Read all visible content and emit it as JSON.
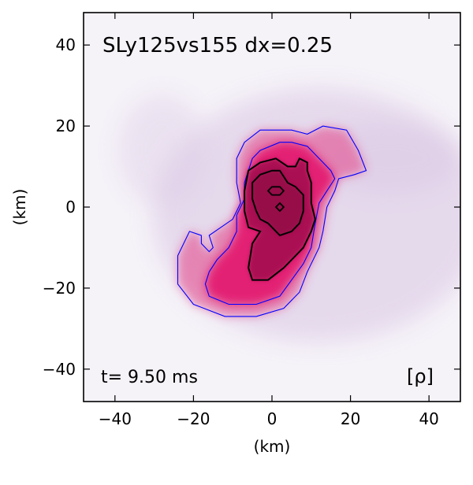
{
  "chart_data": {
    "type": "heatmap",
    "title": "SLy125vs155 dx=0.25",
    "time_label": "t= 9.50 ms",
    "field_label": "[ρ]",
    "xlabel": "(km)",
    "ylabel": "(km)",
    "xlim": [
      -48,
      48
    ],
    "ylim": [
      -48,
      48
    ],
    "xticks": [
      -40,
      -20,
      0,
      20,
      40
    ],
    "yticks": [
      -40,
      -20,
      0,
      20,
      40
    ],
    "xtick_labels": [
      "−40",
      "−20",
      "0",
      "20",
      "40"
    ],
    "ytick_labels": [
      "−40",
      "−20",
      "0",
      "20",
      "40"
    ],
    "grid": false,
    "colors": {
      "background": "#f5f2f8",
      "halo": "#d9c5e3",
      "mid": "#e33f86",
      "core": "#e3005f",
      "inner": "#a0104e",
      "outer_contour": "#0000ff",
      "inner_contour": "#000000"
    },
    "contours": {
      "outer_blue_1": [
        [
          -24,
          -12
        ],
        [
          -21,
          -6
        ],
        [
          -18,
          -7
        ],
        [
          -18,
          -9
        ],
        [
          -16,
          -11
        ],
        [
          -15,
          -10
        ],
        [
          -16,
          -7
        ],
        [
          -13,
          -5
        ],
        [
          -10,
          -3
        ],
        [
          -8,
          1
        ],
        [
          -9,
          6
        ],
        [
          -9,
          12
        ],
        [
          -7,
          16
        ],
        [
          -3,
          19
        ],
        [
          5,
          19
        ],
        [
          9,
          18
        ],
        [
          13,
          20
        ],
        [
          19,
          19
        ],
        [
          22,
          14
        ],
        [
          24,
          9
        ],
        [
          21,
          8
        ],
        [
          17,
          7
        ],
        [
          16,
          4
        ],
        [
          14,
          0
        ],
        [
          13,
          -6
        ],
        [
          12,
          -10
        ],
        [
          9,
          -16
        ],
        [
          7,
          -21
        ],
        [
          3,
          -25
        ],
        [
          -4,
          -27
        ],
        [
          -12,
          -27
        ],
        [
          -20,
          -24
        ],
        [
          -24,
          -19
        ],
        [
          -24,
          -12
        ]
      ],
      "outer_blue_2": [
        [
          -16,
          -16
        ],
        [
          -14,
          -13
        ],
        [
          -11,
          -10
        ],
        [
          -9,
          -6
        ],
        [
          -9,
          -2
        ],
        [
          -7,
          2
        ],
        [
          -7,
          6
        ],
        [
          -5,
          12
        ],
        [
          -3,
          14
        ],
        [
          2,
          16
        ],
        [
          5,
          16
        ],
        [
          9,
          15
        ],
        [
          12,
          12
        ],
        [
          15,
          9
        ],
        [
          16,
          7
        ],
        [
          14,
          4
        ],
        [
          12,
          1
        ],
        [
          11,
          -4
        ],
        [
          10,
          -10
        ],
        [
          8,
          -14
        ],
        [
          5,
          -18
        ],
        [
          2,
          -22
        ],
        [
          -4,
          -24
        ],
        [
          -11,
          -24
        ],
        [
          -16,
          -22
        ],
        [
          -17,
          -19
        ],
        [
          -16,
          -16
        ]
      ],
      "black_1": [
        [
          -6,
          -5
        ],
        [
          -7,
          -1
        ],
        [
          -7,
          4
        ],
        [
          -6,
          9
        ],
        [
          -3,
          11
        ],
        [
          1,
          12
        ],
        [
          4,
          10
        ],
        [
          6,
          10
        ],
        [
          7,
          12
        ],
        [
          9,
          11
        ],
        [
          9,
          9
        ],
        [
          10,
          6
        ],
        [
          10,
          1
        ],
        [
          11,
          -3
        ],
        [
          10,
          -6
        ],
        [
          8,
          -10
        ],
        [
          5,
          -13
        ],
        [
          3,
          -15
        ],
        [
          -1,
          -18
        ],
        [
          -5,
          -18
        ],
        [
          -6,
          -15
        ],
        [
          -5,
          -9
        ],
        [
          -3,
          -6
        ],
        [
          -6,
          -5
        ]
      ],
      "black_2": [
        [
          -5,
          2
        ],
        [
          -5,
          6
        ],
        [
          -3,
          8
        ],
        [
          0,
          9
        ],
        [
          2,
          9
        ],
        [
          4,
          6
        ],
        [
          6,
          5
        ],
        [
          8,
          3
        ],
        [
          8,
          -1
        ],
        [
          7,
          -4
        ],
        [
          5,
          -6
        ],
        [
          2,
          -7
        ],
        [
          -1,
          -4
        ],
        [
          -3,
          -3
        ],
        [
          -4,
          -1
        ],
        [
          -5,
          2
        ]
      ],
      "black_3": [
        [
          -1,
          4
        ],
        [
          0,
          5
        ],
        [
          2,
          5
        ],
        [
          3,
          4
        ],
        [
          2,
          3
        ],
        [
          0,
          3
        ],
        [
          -1,
          4
        ]
      ],
      "black_4": [
        [
          1,
          0
        ],
        [
          2,
          1
        ],
        [
          3,
          0
        ],
        [
          2,
          -1
        ],
        [
          1,
          0
        ]
      ]
    }
  }
}
